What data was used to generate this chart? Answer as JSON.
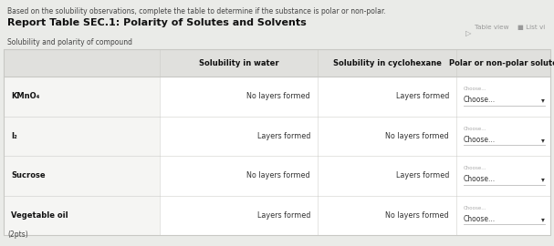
{
  "title_instruction": "Based on the solubility observations, complete the table to determine if the substance is polar or non-polar.",
  "title_report": "Report Table SEC.1: Polarity of Solutes and Solvents",
  "table_label": "Solubility and polarity of compound",
  "top_right_text1": "Table view",
  "top_right_text2": "List vi",
  "col_headers": [
    "Solubility in water",
    "Solubility in cyclohexane",
    "Polar or non-polar solute"
  ],
  "rows": [
    {
      "substance": "KMnO₄",
      "water": "No layers formed",
      "cyclohexane": "Layers formed"
    },
    {
      "substance": "I₂",
      "water": "Layers formed",
      "cyclohexane": "No layers formed"
    },
    {
      "substance": "Sucrose",
      "water": "No layers formed",
      "cyclohexane": "Layers formed"
    },
    {
      "substance": "Vegetable oil",
      "water": "Layers formed",
      "cyclohexane": "No layers formed"
    }
  ],
  "footer_text": "(2pts)",
  "bg_color": "#eaebe8",
  "table_bg_light": "#f5f5f3",
  "table_bg_white": "#ffffff",
  "header_bg": "#e0e0dd",
  "border_color": "#c8c8c4",
  "text_color": "#333333",
  "gray_text": "#999999",
  "gray_text_small": "#aaaaaa",
  "instruction_color": "#444444",
  "bold_title_color": "#111111",
  "choose_underline": "#bbbbbb"
}
